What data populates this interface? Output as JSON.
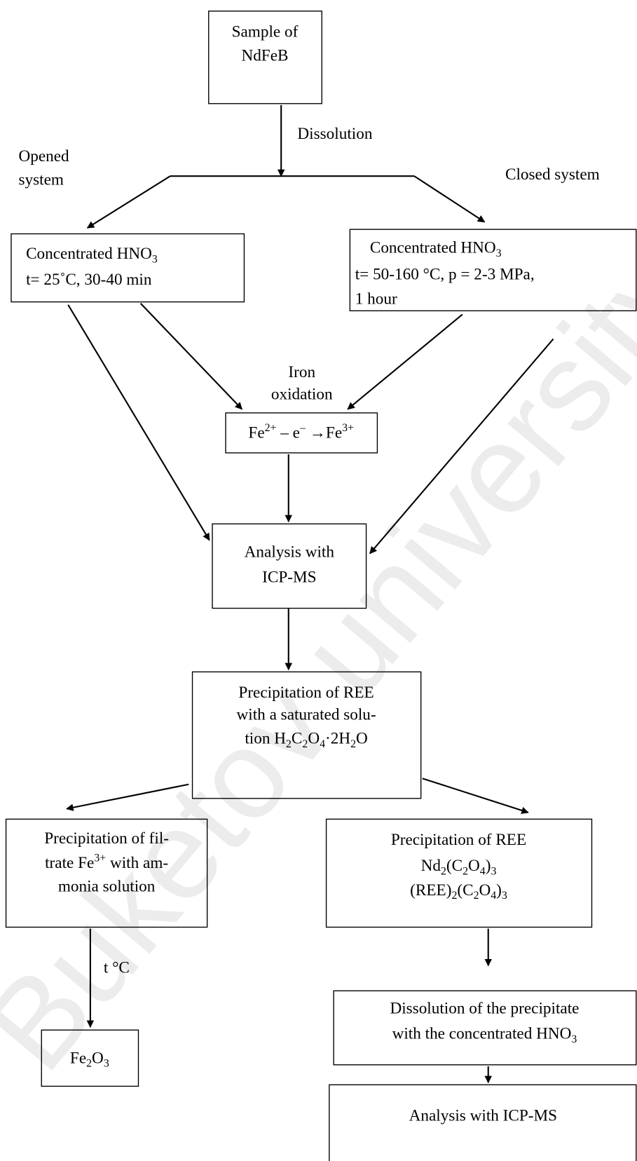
{
  "watermark": "Buketov university",
  "nodes": [
    {
      "lines": [
        [
          "Sample of"
        ],
        [
          "NdFeB"
        ]
      ]
    },
    {
      "lines": [
        [
          "Concentrated HNO",
          {
            "sub": "3"
          }
        ],
        [
          "t= 25˚C, 30-40 min"
        ]
      ]
    },
    {
      "lines": [
        [
          "Concentrated HNO",
          {
            "sub": "3"
          }
        ],
        [
          "t= 50-160 °C, p = 2-3 MPa,"
        ],
        [
          "1 hour"
        ]
      ]
    },
    {
      "lines": [
        [
          "Fe",
          {
            "sup": "2+"
          },
          " – e",
          {
            "sup": "–"
          },
          " →Fe",
          {
            "sup": "3+"
          }
        ]
      ]
    },
    {
      "lines": [
        [
          "Analysis with"
        ],
        [
          "ICP-MS"
        ]
      ]
    },
    {
      "lines": [
        [
          "Precipitation of REE"
        ],
        [
          "with a saturated solu-"
        ],
        [
          "tion H",
          {
            "sub": "2"
          },
          "C",
          {
            "sub": "2"
          },
          "O",
          {
            "sub": "4"
          },
          "·2H",
          {
            "sub": "2"
          },
          "O"
        ]
      ]
    },
    {
      "lines": [
        [
          "Precipitation of fil-"
        ],
        [
          "trate Fe",
          {
            "sup": "3+"
          },
          " with am-"
        ],
        [
          "monia solution"
        ]
      ]
    },
    {
      "lines": [
        [
          "Precipitation of REE"
        ],
        [
          "Nd",
          {
            "sub": "2"
          },
          "(C",
          {
            "sub": "2"
          },
          "O",
          {
            "sub": "4"
          },
          ")",
          {
            "sub": "3"
          }
        ],
        [
          "(REE)",
          {
            "sub": "2"
          },
          "(C",
          {
            "sub": "2"
          },
          "O",
          {
            "sub": "4"
          },
          ")",
          {
            "sub": "3"
          }
        ]
      ]
    },
    {
      "lines": [
        [
          "Dissolution of the precipitate"
        ],
        [
          "with the concentrated HNO",
          {
            "sub": "3"
          }
        ]
      ]
    },
    {
      "lines": [
        [
          "Fe",
          {
            "sub": "2"
          },
          "O",
          {
            "sub": "3"
          }
        ]
      ]
    },
    {
      "lines": [
        [
          "Analysis with ICP-MS"
        ]
      ]
    }
  ],
  "labels": [
    {
      "lines": [
        [
          "Dissolution"
        ]
      ]
    },
    {
      "lines": [
        [
          "Opened"
        ],
        [
          "system"
        ]
      ]
    },
    {
      "lines": [
        [
          "Closed system"
        ]
      ]
    },
    {
      "lines": [
        [
          "Iron"
        ],
        [
          "oxidation"
        ]
      ]
    },
    {
      "lines": [
        [
          "t °C"
        ]
      ]
    }
  ]
}
